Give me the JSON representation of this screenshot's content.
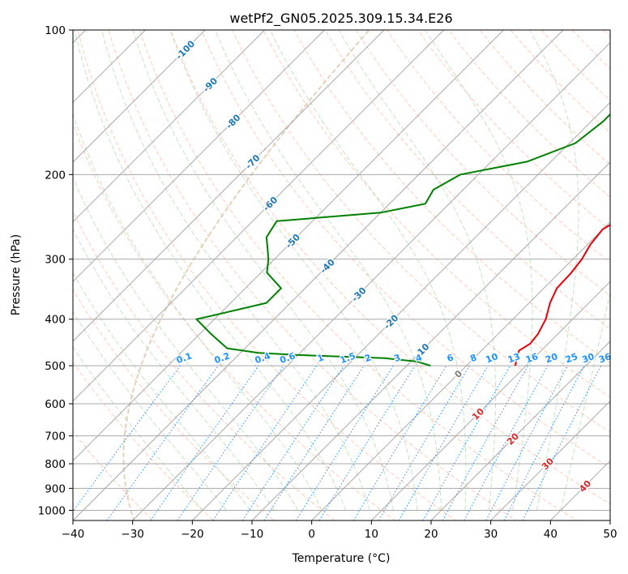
{
  "chart_data": {
    "type": "line",
    "title": "wetPf2_GN05.2025.309.15.34.E26",
    "xlabel": "Temperature (°C)",
    "ylabel": "Pressure (hPa)",
    "xlim": [
      -40,
      50
    ],
    "ylim": [
      1050,
      100
    ],
    "x_ticks": [
      -40,
      -30,
      -20,
      -10,
      0,
      10,
      20,
      30,
      40,
      50
    ],
    "x_tick_labels": [
      "−40",
      "−30",
      "−20",
      "−10",
      "0",
      "10",
      "20",
      "30",
      "40",
      "50"
    ],
    "y_ticks": [
      100,
      200,
      300,
      400,
      500,
      600,
      700,
      800,
      900,
      1000
    ],
    "y_tick_labels": [
      "100",
      "200",
      "300",
      "400",
      "500",
      "600",
      "700",
      "800",
      "900",
      "1000"
    ],
    "series": [
      {
        "name": "Temperature",
        "color": "#e8000b",
        "points": [
          [
            8.2,
            500
          ],
          [
            7.0,
            480
          ],
          [
            6.3,
            465
          ],
          [
            7.0,
            450
          ],
          [
            6.7,
            430
          ],
          [
            5.5,
            400
          ],
          [
            3.5,
            370
          ],
          [
            2.2,
            345
          ],
          [
            2.0,
            320
          ],
          [
            1.5,
            300
          ],
          [
            0.5,
            280
          ],
          [
            0.0,
            260
          ],
          [
            2.0,
            240
          ],
          [
            6.0,
            220
          ],
          [
            7.0,
            200
          ],
          [
            7.0,
            180
          ],
          [
            8.0,
            160
          ],
          [
            9.0,
            145
          ],
          [
            10.5,
            130
          ],
          [
            12.5,
            118
          ],
          [
            15.0,
            110
          ],
          [
            17.2,
            102
          ]
        ]
      },
      {
        "name": "Dewpoint",
        "color": "#008000",
        "points": [
          [
            -6.0,
            500
          ],
          [
            -9.0,
            490
          ],
          [
            -15.0,
            482
          ],
          [
            -30.0,
            475
          ],
          [
            -37.0,
            470
          ],
          [
            -43.0,
            460
          ],
          [
            -48.0,
            430
          ],
          [
            -53.0,
            400
          ],
          [
            -50.0,
            390
          ],
          [
            -44.0,
            370
          ],
          [
            -44.0,
            345
          ],
          [
            -49.0,
            320
          ],
          [
            -51.0,
            300
          ],
          [
            -55.0,
            270
          ],
          [
            -56.0,
            250
          ],
          [
            -40.0,
            240
          ],
          [
            -34.0,
            230
          ],
          [
            -35.0,
            215
          ],
          [
            -33.0,
            200
          ],
          [
            -24.0,
            188
          ],
          [
            -19.0,
            172
          ],
          [
            -18.0,
            155
          ],
          [
            -18.0,
            140
          ],
          [
            -16.0,
            125
          ],
          [
            -13.0,
            112
          ],
          [
            -10.0,
            100
          ]
        ]
      }
    ],
    "isotherm_labels": [
      {
        "value": -100,
        "text": "-100",
        "p": 110
      },
      {
        "value": -90,
        "text": "-90",
        "p": 130
      },
      {
        "value": -80,
        "text": "-80",
        "p": 155
      },
      {
        "value": -70,
        "text": "-70",
        "p": 188
      },
      {
        "value": -60,
        "text": "-60",
        "p": 230
      },
      {
        "value": -50,
        "text": "-50",
        "p": 275
      },
      {
        "value": -40,
        "text": "-40",
        "p": 310
      },
      {
        "value": -30,
        "text": "-30",
        "p": 355
      },
      {
        "value": -20,
        "text": "-20",
        "p": 405
      },
      {
        "value": -10,
        "text": "-10",
        "p": 465
      },
      {
        "value": 0,
        "text": "0",
        "p": 520
      },
      {
        "value": 10,
        "text": "10",
        "p": 630
      },
      {
        "value": 20,
        "text": "20",
        "p": 710
      },
      {
        "value": 30,
        "text": "30",
        "p": 800
      },
      {
        "value": 40,
        "text": "40",
        "p": 890
      }
    ],
    "mixing_ratio_labels": [
      "0.1",
      "0.2",
      "0.4",
      "0.6",
      "1",
      "1.5",
      "2",
      "3",
      "4",
      "6",
      "8",
      "10",
      "13",
      "16",
      "20",
      "25",
      "30",
      "36"
    ],
    "mixing_ratio_label_pressure": 500,
    "colors": {
      "temperature": "#e8000b",
      "dewpoint": "#008000",
      "isotherm_line": "#a9a9a9",
      "isotherm_label_cold": "#1f77b4",
      "isotherm_label_zero": "#7f7f7f",
      "isotherm_label_warm": "#d62728",
      "dry_adiabat": "#ff9f80",
      "moist_adiabat": "#7fbf7f",
      "mixing_ratio": "#1e90ff",
      "isobar": "#a9a9a9",
      "tan_curve": "#d2b48c"
    }
  }
}
